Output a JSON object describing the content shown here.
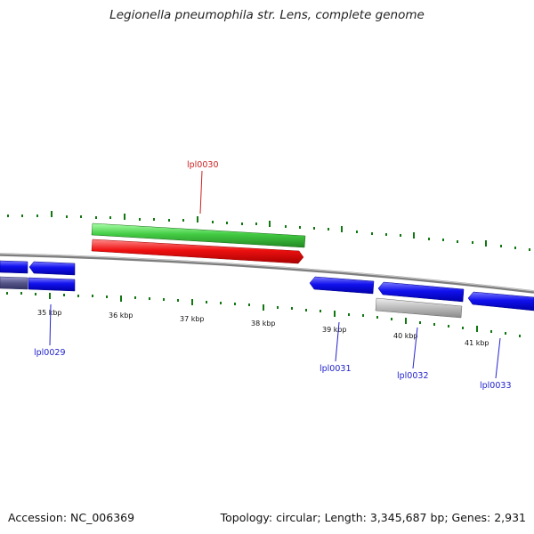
{
  "title": "Legionella pneumophila str. Lens, complete genome",
  "footer": {
    "accession": "Accession: NC_006369",
    "stats": "Topology: circular; Length: 3,345,687 bp; Genes: 2,931"
  },
  "tick_labels": [
    {
      "kbp": 35,
      "label": "35 kbp"
    },
    {
      "kbp": 36,
      "label": "36 kbp"
    },
    {
      "kbp": 37,
      "label": "37 kbp"
    },
    {
      "kbp": 38,
      "label": "38 kbp"
    },
    {
      "kbp": 39,
      "label": "39 kbp"
    },
    {
      "kbp": 40,
      "label": "40 kbp"
    },
    {
      "kbp": 41,
      "label": "41 kbp"
    }
  ],
  "gene_labels": [
    {
      "name": "lpl0029",
      "color": "#2222cc"
    },
    {
      "name": "lpl0030",
      "color": "#cc2222"
    },
    {
      "name": "lpl0031",
      "color": "#2222cc"
    },
    {
      "name": "lpl0032",
      "color": "#2222cc"
    },
    {
      "name": "lpl0033",
      "color": "#2222cc"
    }
  ],
  "colors": {
    "backbone": "#8a8a8a",
    "forward_gene": "#ee1111",
    "reverse_gene": "#1111ee",
    "rna_gene": "#44cc44",
    "pseudo_gene": "#bbbbbb",
    "muted_gene": "#555588",
    "tick": "#117711"
  }
}
